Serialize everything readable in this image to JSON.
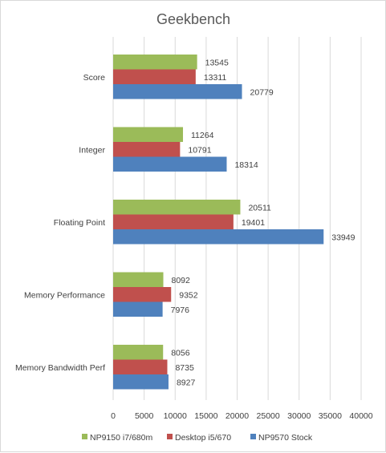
{
  "chart_data": {
    "type": "bar",
    "orientation": "horizontal",
    "title": "Geekbench",
    "categories": [
      "Score",
      "Integer",
      "Floating Point",
      "Memory Performance",
      "Memory Bandwidth Perf"
    ],
    "series": [
      {
        "name": "NP9150 i7/680m",
        "color": "#9bbb59",
        "values": [
          13545,
          11264,
          20511,
          8092,
          8056
        ]
      },
      {
        "name": "Desktop i5/670",
        "color": "#c0504d",
        "values": [
          13311,
          10791,
          19401,
          9352,
          8735
        ]
      },
      {
        "name": "NP9570 Stock",
        "color": "#4f81bd",
        "values": [
          20779,
          18314,
          33949,
          7976,
          8927
        ]
      }
    ],
    "xlim": [
      0,
      40000
    ],
    "xticks": [
      0,
      5000,
      10000,
      15000,
      20000,
      25000,
      30000,
      35000,
      40000
    ],
    "grid": true,
    "legend": "bottom",
    "data_labels": true
  }
}
